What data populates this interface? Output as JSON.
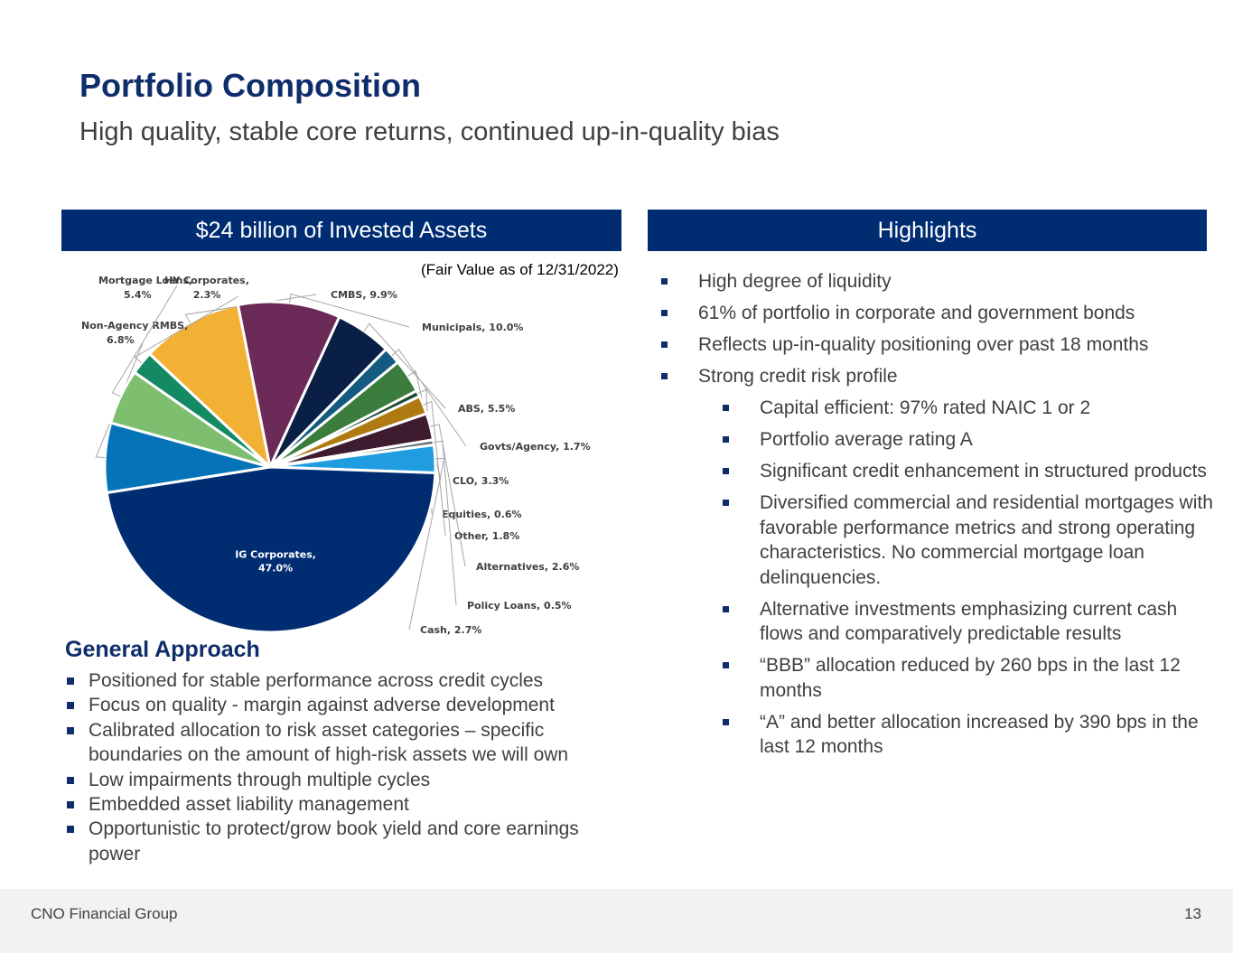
{
  "header": {
    "title": "Portfolio Composition",
    "subtitle": "High quality, stable core returns, continued up-in-quality bias"
  },
  "left_panel": {
    "banner": "$24 billion of Invested Assets",
    "note": "(Fair Value as of 12/31/2022)"
  },
  "right_panel": {
    "banner": "Highlights",
    "items": [
      {
        "level": 1,
        "text": "High degree of liquidity"
      },
      {
        "level": 1,
        "text": "61% of portfolio in corporate and government bonds"
      },
      {
        "level": 1,
        "text": "Reflects up-in-quality positioning over past 18 months"
      },
      {
        "level": 1,
        "text": "Strong credit risk profile"
      },
      {
        "level": 2,
        "text": "Capital efficient: 97% rated NAIC 1 or 2"
      },
      {
        "level": 2,
        "text": "Portfolio average rating A"
      },
      {
        "level": 2,
        "text": "Significant credit enhancement in structured products"
      },
      {
        "level": 2,
        "text": "Diversified commercial and residential mortgages with favorable performance metrics and strong operating characteristics. No commercial mortgage loan delinquencies."
      },
      {
        "level": 2,
        "text": "Alternative investments emphasizing current cash flows and comparatively predictable results"
      },
      {
        "level": 2,
        "text": "“BBB” allocation reduced by 260 bps in the last 12 months"
      },
      {
        "level": 2,
        "text": "“A” and better allocation increased by 390 bps in the last 12 months"
      }
    ]
  },
  "general_approach": {
    "title": "General Approach",
    "items": [
      "Positioned for stable performance across credit cycles",
      "Focus on quality - margin against adverse development",
      "Calibrated allocation to risk asset categories – specific boundaries on the amount of high-risk assets we will own",
      "Low impairments through multiple cycles",
      "Embedded asset liability management",
      "Opportunistic to protect/grow book yield and core earnings power"
    ]
  },
  "footer": {
    "company": "CNO Financial Group",
    "page_number": "13"
  },
  "chart_data": {
    "type": "pie",
    "unit": "%",
    "slices": [
      {
        "label": "CMBS, 9.9%",
        "name": "CMBS",
        "value": 9.9,
        "color": "#f2b134"
      },
      {
        "label": "Municipals, 10.0%",
        "name": "Municipals",
        "value": 10.0,
        "color": "#6b2a57"
      },
      {
        "label": "ABS, 5.5%",
        "name": "ABS",
        "value": 5.5,
        "color": "#0a1f45"
      },
      {
        "label": "Govts/Agency, 1.7%",
        "name": "Govts/Agency",
        "value": 1.7,
        "color": "#155a80"
      },
      {
        "label": "CLO, 3.3%",
        "name": "CLO",
        "value": 3.3,
        "color": "#3b7d3c"
      },
      {
        "label": "Equities, 0.6%",
        "name": "Equities",
        "value": 0.6,
        "color": "#1a4a32"
      },
      {
        "label": "Other, 1.8%",
        "name": "Other",
        "value": 1.8,
        "color": "#b07a12"
      },
      {
        "label": "Alternatives, 2.6%",
        "name": "Alternatives",
        "value": 2.6,
        "color": "#3f1b30"
      },
      {
        "label": "Policy Loans, 0.5%",
        "name": "Policy Loans",
        "value": 0.5,
        "color": "#5d6b78"
      },
      {
        "label": "Cash, 2.7%",
        "name": "Cash",
        "value": 2.7,
        "color": "#1f9de0"
      },
      {
        "label": "IG Corporates, 47.0%",
        "name": "IG Corporates",
        "value": 47.0,
        "color": "#002d72"
      },
      {
        "label": "Non-Agency RMBS, 6.8%",
        "name": "Non-Agency RMBS",
        "value": 6.8,
        "color": "#0573b8"
      },
      {
        "label": "Mortgage Loans, 5.4%",
        "name": "Mortgage Loans",
        "value": 5.4,
        "color": "#7dbf6e"
      },
      {
        "label": "HY Corporates, 2.3%",
        "name": "HY Corporates",
        "value": 2.3,
        "color": "#138a64"
      }
    ]
  }
}
